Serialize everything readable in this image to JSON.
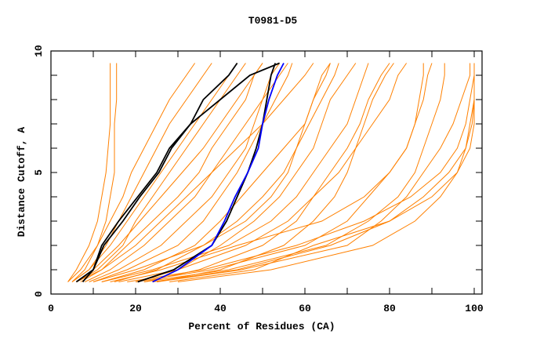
{
  "chart_data": {
    "type": "line",
    "title": "T0981-D5",
    "xlabel": "Percent of Residues (CA)",
    "ylabel": "Distance Cutoff, A",
    "xlim": [
      0,
      100
    ],
    "ylim": [
      0,
      10
    ],
    "x_ticks": [
      "0",
      "20",
      "40",
      "60",
      "80",
      "100"
    ],
    "y_ticks": [
      "0",
      "5",
      "10"
    ],
    "grid": false,
    "colors": {
      "models": "#ff8000",
      "highlight": "#000000",
      "reference": "#0000ff"
    },
    "y": [
      0.5,
      1,
      2,
      3,
      4,
      5,
      6,
      7,
      8,
      9,
      9.5
    ],
    "series": [
      {
        "color": "#ff8000",
        "x": [
          4,
          6,
          9,
          11,
          12,
          13,
          13.5,
          14,
          14,
          14,
          14
        ]
      },
      {
        "color": "#ff8000",
        "x": [
          5,
          8,
          11,
          13,
          14,
          15,
          15,
          15,
          15.5,
          15.5,
          15.5
        ]
      },
      {
        "color": "#ff8000",
        "x": [
          4,
          7,
          11,
          14,
          17,
          19,
          22,
          25,
          28,
          32,
          34
        ]
      },
      {
        "color": "#ff8000",
        "x": [
          5,
          9,
          14,
          18,
          22,
          26,
          30,
          34,
          38,
          42,
          44
        ]
      },
      {
        "color": "#ff8000",
        "x": [
          6,
          10,
          16,
          21,
          26,
          31,
          36,
          40,
          44,
          48,
          50
        ]
      },
      {
        "color": "#ff8000",
        "x": [
          8,
          14,
          22,
          28,
          34,
          38,
          42,
          46,
          50,
          52,
          54
        ]
      },
      {
        "color": "#ff8000",
        "x": [
          10,
          18,
          30,
          36,
          40,
          44,
          47,
          50,
          53,
          56,
          57
        ]
      },
      {
        "color": "#ff8000",
        "x": [
          15,
          25,
          36,
          44,
          50,
          55,
          58,
          61,
          64,
          67,
          68
        ]
      },
      {
        "color": "#ff8000",
        "x": [
          20,
          30,
          40,
          48,
          54,
          58,
          62,
          64,
          66,
          70,
          72
        ]
      },
      {
        "color": "#ff8000",
        "x": [
          22,
          35,
          50,
          58,
          62,
          66,
          70,
          73,
          75,
          78,
          80
        ]
      },
      {
        "color": "#ff8000",
        "x": [
          25,
          40,
          55,
          62,
          67,
          70,
          72,
          74,
          76,
          79,
          81
        ]
      },
      {
        "color": "#ff8000",
        "x": [
          20,
          38,
          60,
          70,
          75,
          80,
          84,
          86,
          87,
          88,
          88
        ]
      },
      {
        "color": "#ff8000",
        "x": [
          22,
          42,
          65,
          75,
          82,
          86,
          88,
          90,
          92,
          93,
          93
        ]
      },
      {
        "color": "#ff8000",
        "x": [
          25,
          45,
          70,
          78,
          84,
          88,
          92,
          95,
          97,
          99,
          99
        ]
      },
      {
        "color": "#ff8000",
        "x": [
          18,
          36,
          58,
          74,
          85,
          92,
          96,
          98,
          99,
          100,
          100
        ]
      },
      {
        "color": "#ff8000",
        "x": [
          28,
          48,
          62,
          80,
          90,
          96,
          99,
          100,
          100,
          100,
          100
        ]
      },
      {
        "color": "#ff8000",
        "x": [
          12,
          24,
          42,
          52,
          58,
          62,
          66,
          70,
          72,
          74,
          75
        ]
      },
      {
        "color": "#ff8000",
        "x": [
          6,
          12,
          20,
          26,
          32,
          38,
          44,
          50,
          55,
          60,
          62
        ]
      },
      {
        "color": "#ff8000",
        "x": [
          9,
          16,
          26,
          32,
          38,
          42,
          46,
          48,
          50,
          54,
          56
        ]
      },
      {
        "color": "#ff8000",
        "x": [
          7,
          12,
          18,
          24,
          30,
          35,
          38,
          42,
          46,
          48,
          50
        ]
      },
      {
        "color": "#ff8000",
        "x": [
          16,
          30,
          46,
          56,
          62,
          68,
          72,
          76,
          80,
          82,
          84
        ]
      },
      {
        "color": "#ff8000",
        "x": [
          30,
          52,
          76,
          86,
          92,
          96,
          98,
          99,
          100,
          100,
          100
        ]
      },
      {
        "color": "#ff8000",
        "x": [
          12,
          22,
          34,
          40,
          45,
          50,
          55,
          60,
          62,
          65,
          66
        ]
      },
      {
        "color": "#ff8000",
        "x": [
          5,
          9,
          13,
          16,
          19,
          22,
          25,
          28,
          32,
          36,
          38
        ]
      },
      {
        "color": "#ff8000",
        "x": [
          6,
          11,
          17,
          20,
          24,
          28,
          32,
          36,
          40,
          44,
          46
        ]
      },
      {
        "color": "#ff8000",
        "x": [
          14,
          26,
          44,
          64,
          74,
          80,
          84,
          86,
          88,
          89,
          90
        ]
      },
      {
        "color": "#ff8000",
        "x": [
          10,
          20,
          36,
          46,
          52,
          56,
          58,
          60,
          62,
          64,
          66
        ]
      },
      {
        "color": "#ff8000",
        "x": [
          24,
          44,
          66,
          80,
          88,
          94,
          98,
          99.5,
          100,
          100,
          100
        ]
      },
      {
        "color": "#000000",
        "x": [
          6,
          10,
          12,
          16,
          20.5,
          25,
          28,
          33,
          36,
          42,
          44
        ]
      },
      {
        "color": "#000000",
        "x": [
          7.5,
          10,
          12.5,
          17,
          21,
          25.5,
          28.5,
          33,
          40,
          47,
          54
        ]
      },
      {
        "color": "#000000",
        "x": [
          20.5,
          29,
          38,
          41.5,
          44,
          46.5,
          48.5,
          50,
          51,
          52,
          53
        ]
      },
      {
        "color": "#0000ff",
        "x": [
          24,
          30,
          38,
          41,
          43.5,
          46.5,
          49,
          50,
          51.5,
          53.5,
          55
        ]
      }
    ]
  }
}
